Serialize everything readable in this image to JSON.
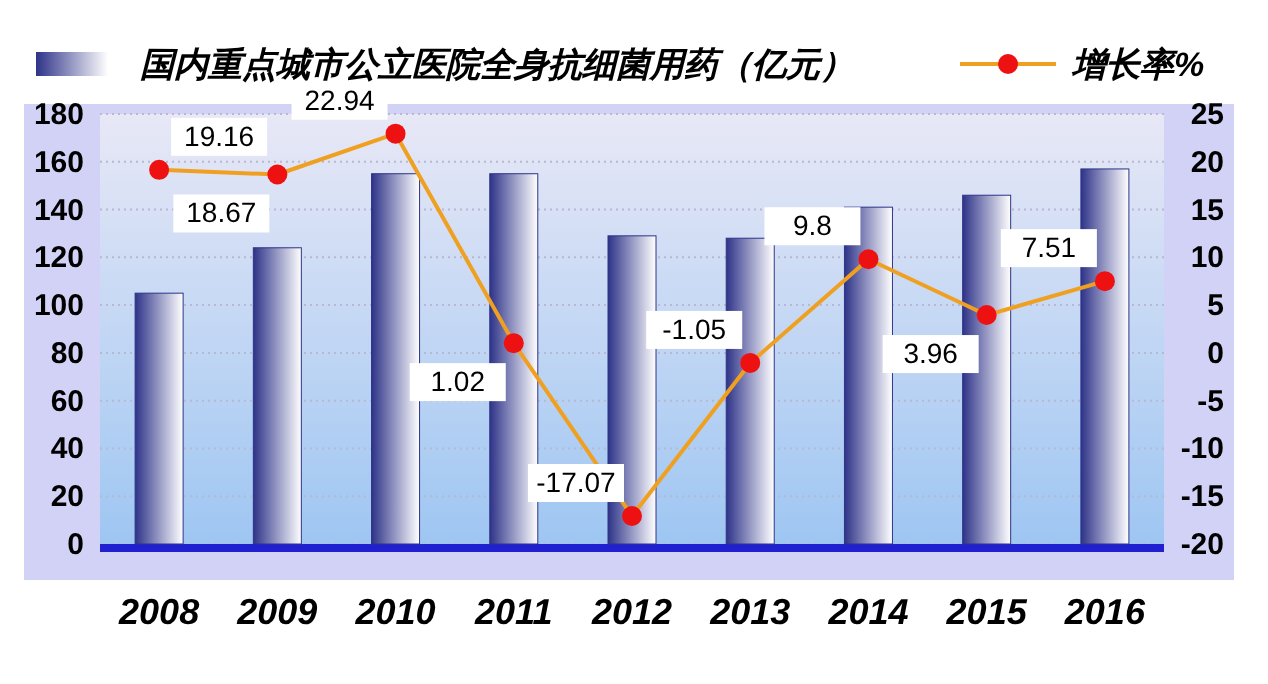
{
  "chart_data": {
    "type": "bar",
    "categories": [
      "2008",
      "2009",
      "2010",
      "2011",
      "2012",
      "2013",
      "2014",
      "2015",
      "2016"
    ],
    "series": [
      {
        "name": "国内重点城市公立医院全身抗细菌用药（亿元）",
        "color": "#2e3388",
        "values": [
          105,
          124,
          155,
          155,
          129,
          128,
          141,
          146,
          157
        ]
      },
      {
        "name": "增长率%",
        "type": "line",
        "axis": "y2",
        "color": "#f0a020",
        "marker": "circle",
        "values": [
          19.16,
          18.67,
          22.94,
          1.02,
          -17.07,
          -1.05,
          9.8,
          3.96,
          7.51
        ],
        "value_labels": [
          "19.16",
          "18.67",
          "22.94",
          "1.02",
          "-17.07",
          "-1.05",
          "9.8",
          "3.96",
          "7.51"
        ]
      }
    ],
    "ylim": [
      0,
      180
    ],
    "yticks": [
      0,
      20,
      40,
      60,
      80,
      100,
      120,
      140,
      160,
      180
    ],
    "y2lim": [
      -20,
      25
    ],
    "y2ticks": [
      -20,
      -15,
      -10,
      -5,
      0,
      5,
      10,
      15,
      20,
      25
    ],
    "grid": "y",
    "legend": "top"
  }
}
